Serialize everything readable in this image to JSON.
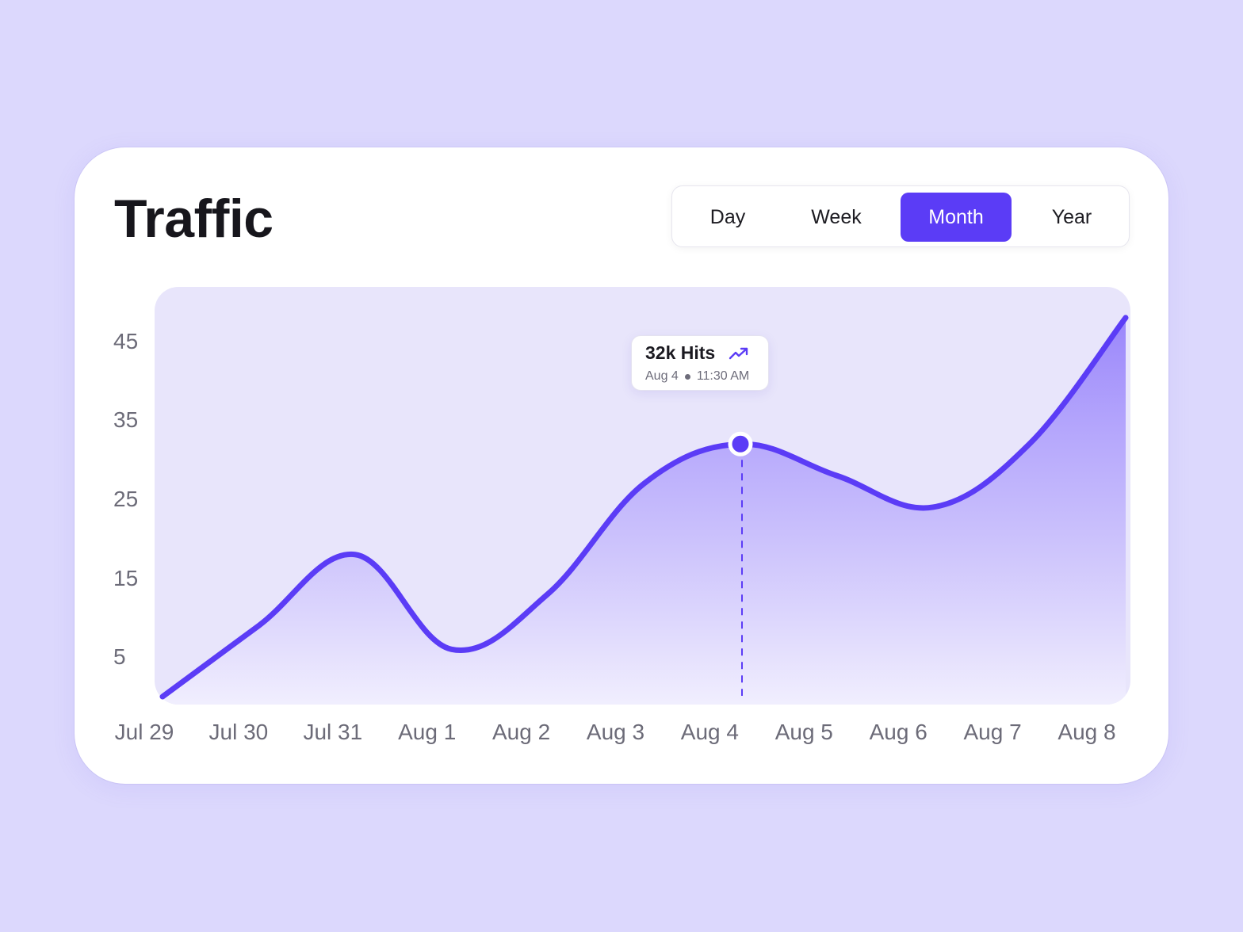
{
  "title": "Traffic",
  "range_tabs": {
    "day": "Day",
    "week": "Week",
    "month": "Month",
    "year": "Year",
    "selected": "Month"
  },
  "tooltip": {
    "value_label": "32k Hits",
    "date": "Aug 4",
    "time": "11:30 AM",
    "icon": "trending-up-icon"
  },
  "colors": {
    "accent": "#5b3cf6",
    "background": "#dcd8fd",
    "plot_background": "#e8e5fb"
  },
  "chart_data": {
    "type": "area",
    "categories": [
      "Jul 29",
      "Jul 30",
      "Jul 31",
      "Aug 1",
      "Aug 2",
      "Aug 3",
      "Aug 4",
      "Aug 5",
      "Aug 6",
      "Aug 7",
      "Aug 8"
    ],
    "values": [
      0,
      9,
      18,
      6,
      13,
      27,
      32,
      28,
      24,
      32,
      48
    ],
    "y_ticks": [
      "45",
      "35",
      "25",
      "15",
      "5"
    ],
    "ylim": [
      -1,
      51
    ],
    "highlight": {
      "category": "Aug 4",
      "value": 32
    },
    "grid": false,
    "legend": "none"
  }
}
